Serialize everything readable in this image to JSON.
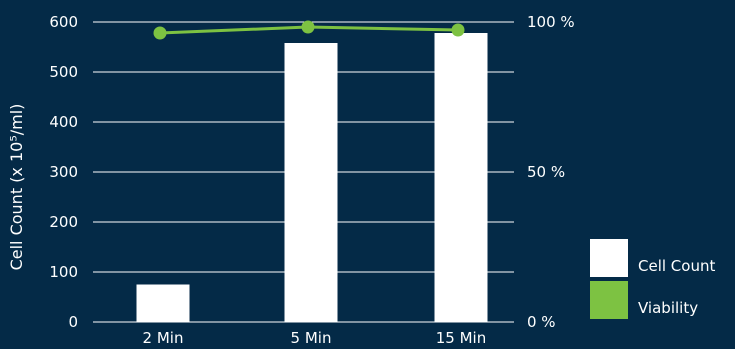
{
  "chart_data": {
    "type": "bar",
    "categories": [
      "2 Min",
      "5 Min",
      "15 Min"
    ],
    "ylabel": "Cell Count (x 10⁵/ml)",
    "ylim": [
      0,
      600
    ],
    "yticks": [
      0,
      100,
      200,
      300,
      400,
      500,
      600
    ],
    "y2lim": [
      0,
      100
    ],
    "y2ticks": [
      "0 %",
      "50 %",
      "100 %"
    ],
    "y2tick_values": [
      0,
      50,
      100
    ],
    "grid": true,
    "legend_position": "bottom-right",
    "series": [
      {
        "name": "Cell Count",
        "type": "bar",
        "axis": "left",
        "values": [
          75,
          558,
          578
        ],
        "color": "#ffffff"
      },
      {
        "name": "Viability",
        "type": "line",
        "axis": "right",
        "values": [
          98,
          100,
          99
        ],
        "color": "#7dc242"
      }
    ]
  }
}
